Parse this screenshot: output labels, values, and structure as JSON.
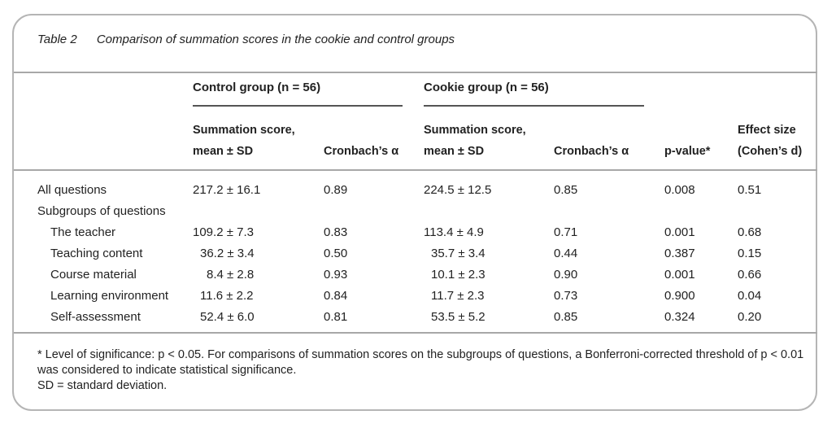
{
  "caption": {
    "label": "Table 2",
    "title": "Comparison of summation scores in the cookie and control groups"
  },
  "groups": {
    "control": "Control group (n = 56)",
    "cookie": "Cookie group (n = 56)"
  },
  "headers": {
    "score_line1": "Summation score,",
    "score_line2": "mean ± SD",
    "alpha": "Cronbach’s α",
    "pvalue": "p-value*",
    "effect_line1": "Effect size",
    "effect_line2": "(Cohen’s d)"
  },
  "rows": [
    {
      "label": "All questions",
      "indent": false,
      "control_score": "217.2 ± 16.1",
      "control_alpha": "0.89",
      "cookie_score": "224.5 ± 12.5",
      "cookie_alpha": "0.85",
      "p": "0.008",
      "d": "0.51"
    },
    {
      "label": "Subgroups of questions",
      "indent": false,
      "control_score": "",
      "control_alpha": "",
      "cookie_score": "",
      "cookie_alpha": "",
      "p": "",
      "d": ""
    },
    {
      "label": "The teacher",
      "indent": true,
      "control_score": "109.2 ± 7.3",
      "control_alpha": "0.83",
      "cookie_score": "113.4 ± 4.9",
      "cookie_alpha": "0.71",
      "p": "0.001",
      "d": "0.68"
    },
    {
      "label": "Teaching content",
      "indent": true,
      "control_score": "36.2 ± 3.4",
      "control_alpha": "0.50",
      "cookie_score": "35.7 ± 3.4",
      "cookie_alpha": "0.44",
      "p": "0.387",
      "d": "0.15"
    },
    {
      "label": "Course material",
      "indent": true,
      "control_score": "8.4 ± 2.8",
      "control_alpha": "0.93",
      "cookie_score": "10.1 ± 2.3",
      "cookie_alpha": "0.90",
      "p": "0.001",
      "d": "0.66"
    },
    {
      "label": "Learning environment",
      "indent": true,
      "control_score": "11.6 ± 2.2",
      "control_alpha": "0.84",
      "cookie_score": "11.7 ± 2.3",
      "cookie_alpha": "0.73",
      "p": "0.900",
      "d": "0.04"
    },
    {
      "label": "Self-assessment",
      "indent": true,
      "control_score": "52.4 ± 6.0",
      "control_alpha": "0.81",
      "cookie_score": "53.5 ± 5.2",
      "cookie_alpha": "0.85",
      "p": "0.324",
      "d": "0.20"
    }
  ],
  "footnotes": {
    "line1": "* Level of significance: p < 0.05. For comparisons of summation scores on the subgroups of questions, a Bonferroni-corrected threshold of p < 0.01 was considered to indicate statistical significance.",
    "line2": "SD = standard deviation."
  }
}
